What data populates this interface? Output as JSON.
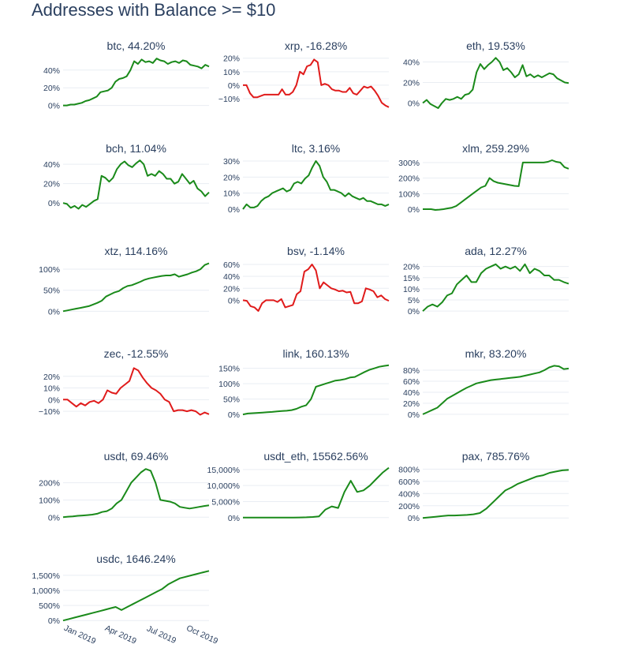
{
  "page_title": "Addresses with Balance >= $10",
  "colors": {
    "up": "#1a8a1a",
    "down": "#e01b1b",
    "text": "#2a3f5f",
    "grid": "#e9edf3"
  },
  "chart_data": [
    {
      "type": "line",
      "title": "btc, 44.20%",
      "color": "#1a8a1a",
      "ylim": [
        -3,
        55
      ],
      "yticks": [
        0,
        20,
        40
      ],
      "yticklabels": [
        "0%",
        "20%",
        "40%"
      ],
      "y": [
        0,
        0,
        1,
        1,
        2,
        3,
        5,
        6,
        8,
        10,
        15,
        16,
        17,
        20,
        27,
        30,
        31,
        33,
        40,
        50,
        47,
        52,
        49,
        50,
        48,
        53,
        51,
        50,
        47,
        49,
        50,
        48,
        51,
        50,
        46,
        45,
        44,
        42,
        46,
        44
      ]
    },
    {
      "type": "line",
      "title": "xrp, -16.28%",
      "color": "#e01b1b",
      "ylim": [
        -17,
        21
      ],
      "yticks": [
        -10,
        0,
        10,
        20
      ],
      "yticklabels": [
        "−10%",
        "0%",
        "10%",
        "20%"
      ],
      "y": [
        0,
        0,
        -6,
        -9,
        -9,
        -8,
        -7,
        -7,
        -7,
        -7,
        -7,
        -3,
        -7,
        -7,
        -5,
        0,
        10,
        8,
        14,
        15,
        19,
        17,
        0,
        1,
        0,
        -3,
        -4,
        -4,
        -5,
        -5,
        -2,
        -6,
        -7,
        -4,
        -1,
        -2,
        -1,
        -4,
        -8,
        -13,
        -15,
        -16.3
      ]
    },
    {
      "type": "line",
      "title": "eth, 19.53%",
      "color": "#1a8a1a",
      "ylim": [
        -5,
        45
      ],
      "yticks": [
        0,
        20,
        40
      ],
      "yticklabels": [
        "0%",
        "20%",
        "40%"
      ],
      "y": [
        0,
        3,
        -1,
        -3,
        -5,
        0,
        4,
        3,
        4,
        6,
        4,
        8,
        9,
        13,
        30,
        38,
        33,
        37,
        40,
        44,
        40,
        32,
        34,
        30,
        25,
        28,
        37,
        26,
        28,
        25,
        27,
        25,
        27,
        29,
        28,
        24,
        22,
        20,
        19.5
      ]
    },
    {
      "type": "line",
      "title": "bch, 11.04%",
      "color": "#1a8a1a",
      "ylim": [
        -8,
        45
      ],
      "yticks": [
        0,
        20,
        40
      ],
      "yticklabels": [
        "0%",
        "20%",
        "40%"
      ],
      "y": [
        0,
        -1,
        -5,
        -3,
        -6,
        -2,
        -4,
        -1,
        2,
        4,
        28,
        26,
        22,
        26,
        35,
        40,
        43,
        39,
        37,
        41,
        44,
        40,
        28,
        30,
        28,
        33,
        30,
        25,
        25,
        20,
        22,
        30,
        25,
        20,
        23,
        15,
        12,
        7,
        11
      ]
    },
    {
      "type": "line",
      "title": "ltc, 3.16%",
      "color": "#1a8a1a",
      "ylim": [
        -1,
        31
      ],
      "yticks": [
        0,
        10,
        20,
        30
      ],
      "yticklabels": [
        "0%",
        "10%",
        "20%",
        "30%"
      ],
      "y": [
        0,
        3,
        1,
        1,
        2,
        5,
        7,
        8,
        10,
        11,
        12,
        13,
        11,
        12,
        16,
        17,
        16,
        19,
        21,
        26,
        30,
        27,
        20,
        17,
        12,
        12,
        11,
        10,
        8,
        10,
        8,
        7,
        6,
        7,
        5,
        5,
        4,
        3,
        3,
        2,
        3
      ]
    },
    {
      "type": "line",
      "title": "xlm, 259.29%",
      "color": "#1a8a1a",
      "ylim": [
        -10,
        320
      ],
      "yticks": [
        0,
        100,
        200,
        300
      ],
      "yticklabels": [
        "0%",
        "100%",
        "200%",
        "300%"
      ],
      "y": [
        0,
        0,
        0,
        -5,
        -3,
        0,
        5,
        10,
        20,
        40,
        60,
        80,
        100,
        120,
        140,
        150,
        200,
        180,
        170,
        165,
        160,
        155,
        150,
        148,
        300,
        300,
        300,
        300,
        300,
        300,
        305,
        315,
        305,
        300,
        270,
        260
      ]
    },
    {
      "type": "line",
      "title": "xtz, 114.16%",
      "color": "#1a8a1a",
      "ylim": [
        -5,
        117
      ],
      "yticks": [
        0,
        50,
        100
      ],
      "yticklabels": [
        "0%",
        "50%",
        "100%"
      ],
      "y": [
        0,
        2,
        4,
        6,
        8,
        10,
        12,
        16,
        20,
        25,
        35,
        40,
        45,
        48,
        55,
        60,
        62,
        66,
        70,
        75,
        78,
        80,
        82,
        84,
        85,
        85,
        88,
        82,
        85,
        88,
        92,
        95,
        100,
        110,
        114
      ]
    },
    {
      "type": "line",
      "title": "bsv, -1.14%",
      "color": "#e01b1b",
      "ylim": [
        -22,
        64
      ],
      "yticks": [
        0,
        20,
        40,
        60
      ],
      "yticklabels": [
        "0%",
        "20%",
        "40%",
        "60%"
      ],
      "y": [
        0,
        -1,
        -10,
        -12,
        -18,
        -5,
        0,
        0,
        0,
        -3,
        2,
        -12,
        -10,
        -8,
        10,
        15,
        48,
        52,
        60,
        50,
        20,
        30,
        25,
        20,
        18,
        15,
        16,
        13,
        14,
        -5,
        -5,
        -2,
        20,
        18,
        15,
        5,
        8,
        2,
        -1
      ]
    },
    {
      "type": "line",
      "title": "ada, 12.27%",
      "color": "#1a8a1a",
      "ylim": [
        -1,
        22
      ],
      "yticks": [
        0,
        5,
        10,
        15,
        20
      ],
      "yticklabels": [
        "0%",
        "5%",
        "10%",
        "15%",
        "20%"
      ],
      "y": [
        0,
        2,
        3,
        2,
        4,
        7,
        8,
        12,
        14,
        16,
        13,
        13,
        17,
        19,
        20,
        21,
        19,
        20,
        19,
        20,
        18,
        21,
        17,
        19,
        18,
        16,
        16,
        14,
        14,
        13,
        12.3
      ]
    },
    {
      "type": "line",
      "title": "zec, -12.55%",
      "color": "#e01b1b",
      "ylim": [
        -14,
        30
      ],
      "yticks": [
        -10,
        0,
        10,
        20
      ],
      "yticklabels": [
        "−10%",
        "0%",
        "10%",
        "20%"
      ],
      "y": [
        0,
        0,
        -3,
        -6,
        -3,
        -5,
        -2,
        -1,
        -3,
        0,
        8,
        6,
        5,
        10,
        13,
        16,
        27,
        25,
        19,
        14,
        10,
        8,
        5,
        0,
        -2,
        -10,
        -9,
        -9,
        -10,
        -9,
        -10,
        -13,
        -11,
        -12.5
      ]
    },
    {
      "type": "line",
      "title": "link, 160.13%",
      "color": "#1a8a1a",
      "ylim": [
        -5,
        162
      ],
      "yticks": [
        0,
        50,
        100,
        150
      ],
      "yticklabels": [
        "0%",
        "50%",
        "100%",
        "150%"
      ],
      "y": [
        0,
        3,
        4,
        5,
        6,
        7,
        8,
        10,
        11,
        12,
        14,
        18,
        25,
        30,
        50,
        90,
        95,
        100,
        105,
        110,
        112,
        115,
        120,
        122,
        130,
        138,
        145,
        150,
        155,
        158,
        160
      ]
    },
    {
      "type": "line",
      "title": "mkr, 83.20%",
      "color": "#1a8a1a",
      "ylim": [
        -3,
        90
      ],
      "yticks": [
        0,
        20,
        40,
        60,
        80
      ],
      "yticklabels": [
        "0%",
        "20%",
        "40%",
        "60%",
        "80%"
      ],
      "y": [
        0,
        4,
        8,
        12,
        20,
        28,
        33,
        38,
        43,
        48,
        52,
        56,
        58,
        60,
        62,
        63,
        64,
        65,
        66,
        67,
        68,
        70,
        72,
        74,
        76,
        80,
        85,
        88,
        87,
        82,
        83
      ]
    },
    {
      "type": "line",
      "title": "usdt, 69.46%",
      "color": "#1a8a1a",
      "ylim": [
        -8,
        290
      ],
      "yticks": [
        0,
        100,
        200
      ],
      "yticklabels": [
        "0%",
        "100%",
        "200%"
      ],
      "y": [
        0,
        3,
        5,
        8,
        10,
        12,
        15,
        20,
        30,
        35,
        50,
        80,
        100,
        150,
        200,
        230,
        260,
        280,
        270,
        200,
        100,
        95,
        90,
        80,
        60,
        55,
        50,
        55,
        60,
        65,
        69
      ]
    },
    {
      "type": "line",
      "title": "usdt_eth, 15562.56%",
      "color": "#1a8a1a",
      "ylim": [
        -300,
        15700
      ],
      "yticks": [
        0,
        5000,
        10000,
        15000
      ],
      "yticklabels": [
        "0%",
        "5,000%",
        "10,000%",
        "15,000%"
      ],
      "y": [
        0,
        0,
        0,
        0,
        0,
        0,
        0,
        0,
        0,
        50,
        100,
        200,
        400,
        2500,
        3500,
        3000,
        8000,
        11500,
        8000,
        8500,
        10000,
        12000,
        14000,
        15562
      ]
    },
    {
      "type": "line",
      "title": "pax, 785.76%",
      "color": "#1a8a1a",
      "ylim": [
        -10,
        830
      ],
      "yticks": [
        0,
        200,
        400,
        600,
        800
      ],
      "yticklabels": [
        "0%",
        "200%",
        "400%",
        "600%",
        "800%"
      ],
      "y": [
        0,
        10,
        20,
        30,
        40,
        40,
        45,
        50,
        60,
        80,
        150,
        250,
        350,
        450,
        500,
        560,
        600,
        640,
        680,
        700,
        740,
        760,
        780,
        786
      ]
    },
    {
      "type": "line",
      "title": "usdc, 1646.24%",
      "color": "#1a8a1a",
      "ylim": [
        -20,
        1680
      ],
      "yticks": [
        0,
        500,
        1000,
        1500
      ],
      "yticklabels": [
        "0%",
        "500%",
        "1,000%",
        "1,500%"
      ],
      "y": [
        0,
        50,
        100,
        150,
        200,
        250,
        300,
        350,
        400,
        450,
        350,
        450,
        550,
        650,
        750,
        850,
        950,
        1050,
        1200,
        1300,
        1400,
        1450,
        1500,
        1550,
        1600,
        1646
      ],
      "xticklabels": [
        "Jan 2019",
        "Apr 2019",
        "Jul 2019",
        "Oct 2019"
      ]
    }
  ]
}
